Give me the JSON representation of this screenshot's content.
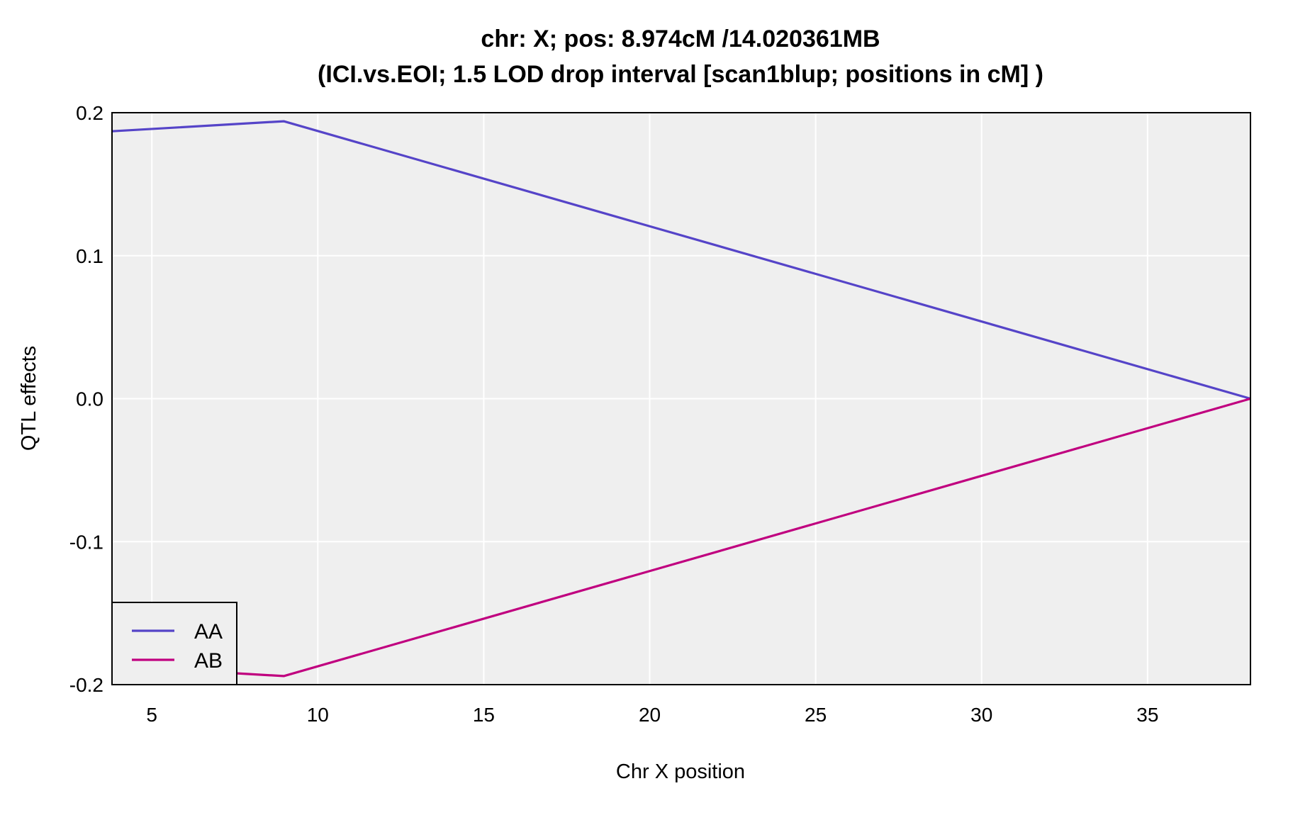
{
  "chart_data": {
    "type": "line",
    "title_line1": "chr: X; pos: 8.974cM /14.020361MB",
    "title_line2": "(ICI.vs.EOI; 1.5 LOD drop interval [scan1blup; positions in cM] )",
    "xlabel": "Chr X position",
    "ylabel": "QTL effects",
    "xlim": [
      3.8,
      38.1
    ],
    "ylim": [
      -0.2,
      0.2
    ],
    "x_ticks": [
      5,
      10,
      15,
      20,
      25,
      30,
      35
    ],
    "x_tick_labels": [
      "5",
      "10",
      "15",
      "20",
      "25",
      "30",
      "35"
    ],
    "y_ticks": [
      -0.2,
      -0.1,
      0.0,
      0.1,
      0.2
    ],
    "y_tick_labels": [
      "-0.2",
      "-0.1",
      "0.0",
      "0.1",
      "0.2"
    ],
    "grid": true,
    "legend_position": "bottom-left",
    "series": [
      {
        "name": "AA",
        "color": "#5544c8",
        "x": [
          3.8,
          8.974,
          38.1
        ],
        "y": [
          0.187,
          0.194,
          0.0
        ]
      },
      {
        "name": "AB",
        "color": "#c0007f",
        "x": [
          3.8,
          8.974,
          38.1
        ],
        "y": [
          -0.187,
          -0.194,
          0.0
        ]
      }
    ],
    "colors": {
      "panel_background": "#efefef",
      "grid": "#ffffff",
      "frame": "#000000"
    }
  }
}
